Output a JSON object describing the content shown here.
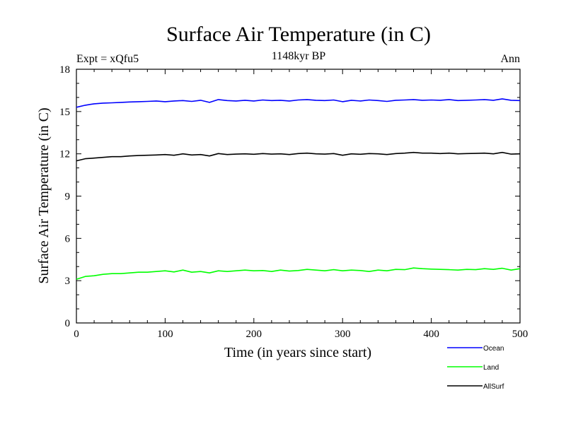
{
  "chart_data": {
    "type": "line",
    "title": "Surface Air Temperature (in C)",
    "subtitle": "1148kyr BP",
    "left_label": "Expt = xQfu5",
    "right_label": "Ann",
    "xlabel": "Time (in years since start)",
    "ylabel": "Surface Air Temperature (in C)",
    "xlim": [
      0,
      500
    ],
    "ylim": [
      0,
      18
    ],
    "xticks": [
      0,
      100,
      200,
      300,
      400,
      500
    ],
    "yticks": [
      0,
      3,
      6,
      9,
      12,
      15,
      18
    ],
    "xtick_labels": [
      "0",
      "100",
      "200",
      "300",
      "400",
      "500"
    ],
    "ytick_labels": [
      "0",
      "3",
      "6",
      "9",
      "12",
      "15",
      "18"
    ],
    "grid": false,
    "legend_position": "bottom-right",
    "series": [
      {
        "name": "Ocean",
        "color": "#0000ff",
        "x": [
          0,
          10,
          20,
          30,
          40,
          50,
          60,
          70,
          80,
          90,
          100,
          110,
          120,
          130,
          140,
          150,
          160,
          170,
          180,
          190,
          200,
          210,
          220,
          230,
          240,
          250,
          260,
          270,
          280,
          290,
          300,
          310,
          320,
          330,
          340,
          350,
          360,
          370,
          380,
          390,
          400,
          410,
          420,
          430,
          440,
          450,
          460,
          470,
          480,
          490,
          500
        ],
        "values": [
          15.3,
          15.45,
          15.55,
          15.6,
          15.62,
          15.65,
          15.68,
          15.7,
          15.72,
          15.75,
          15.7,
          15.75,
          15.78,
          15.72,
          15.8,
          15.65,
          15.85,
          15.78,
          15.75,
          15.8,
          15.75,
          15.82,
          15.78,
          15.8,
          15.75,
          15.82,
          15.85,
          15.8,
          15.78,
          15.82,
          15.7,
          15.8,
          15.75,
          15.82,
          15.78,
          15.72,
          15.8,
          15.82,
          15.85,
          15.8,
          15.82,
          15.8,
          15.85,
          15.78,
          15.8,
          15.82,
          15.85,
          15.8,
          15.9,
          15.8,
          15.78
        ]
      },
      {
        "name": "Land",
        "color": "#00ff00",
        "x": [
          0,
          10,
          20,
          30,
          40,
          50,
          60,
          70,
          80,
          90,
          100,
          110,
          120,
          130,
          140,
          150,
          160,
          170,
          180,
          190,
          200,
          210,
          220,
          230,
          240,
          250,
          260,
          270,
          280,
          290,
          300,
          310,
          320,
          330,
          340,
          350,
          360,
          370,
          380,
          390,
          400,
          410,
          420,
          430,
          440,
          450,
          460,
          470,
          480,
          490,
          500
        ],
        "values": [
          3.1,
          3.3,
          3.35,
          3.45,
          3.5,
          3.5,
          3.55,
          3.6,
          3.6,
          3.65,
          3.7,
          3.62,
          3.75,
          3.6,
          3.65,
          3.55,
          3.7,
          3.65,
          3.7,
          3.75,
          3.7,
          3.72,
          3.65,
          3.75,
          3.68,
          3.72,
          3.8,
          3.75,
          3.7,
          3.78,
          3.7,
          3.75,
          3.72,
          3.65,
          3.75,
          3.7,
          3.8,
          3.78,
          3.9,
          3.85,
          3.82,
          3.8,
          3.78,
          3.75,
          3.8,
          3.78,
          3.85,
          3.8,
          3.88,
          3.75,
          3.85
        ]
      },
      {
        "name": "AllSurf",
        "color": "#000000",
        "x": [
          0,
          10,
          20,
          30,
          40,
          50,
          60,
          70,
          80,
          90,
          100,
          110,
          120,
          130,
          140,
          150,
          160,
          170,
          180,
          190,
          200,
          210,
          220,
          230,
          240,
          250,
          260,
          270,
          280,
          290,
          300,
          310,
          320,
          330,
          340,
          350,
          360,
          370,
          380,
          390,
          400,
          410,
          420,
          430,
          440,
          450,
          460,
          470,
          480,
          490,
          500
        ],
        "values": [
          11.5,
          11.65,
          11.7,
          11.75,
          11.8,
          11.8,
          11.85,
          11.88,
          11.9,
          11.92,
          11.95,
          11.9,
          12.0,
          11.92,
          11.95,
          11.85,
          12.02,
          11.95,
          11.98,
          12.0,
          11.97,
          12.02,
          11.98,
          12.0,
          11.95,
          12.02,
          12.05,
          12.0,
          11.98,
          12.02,
          11.9,
          12.0,
          11.97,
          12.02,
          12.0,
          11.95,
          12.02,
          12.05,
          12.1,
          12.05,
          12.05,
          12.02,
          12.05,
          12.0,
          12.02,
          12.03,
          12.05,
          12.0,
          12.1,
          11.98,
          12.0
        ]
      }
    ]
  }
}
